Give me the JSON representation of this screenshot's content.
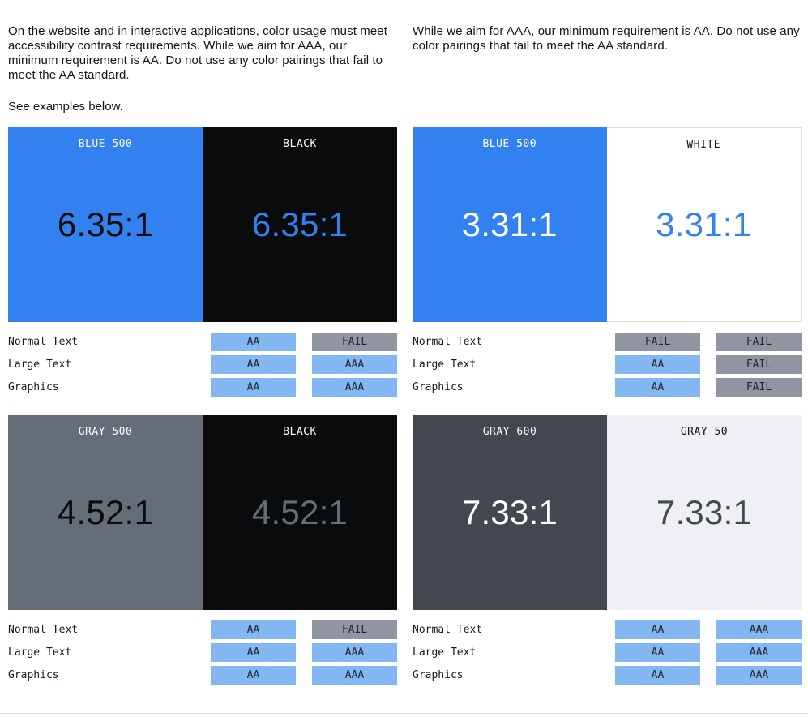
{
  "intro": {
    "left_paragraph": "On the website and in interactive applications, color usage must meet accessibility contrast requirements. While we aim for AAA, our minimum requirement is AA. Do not use any color pairings that fail to meet the AA standard.",
    "left_note": "See examples below.",
    "right_paragraph": "While we aim for AAA, our minimum requirement is AA. Do not use any color pairings that fail to meet the AA standard."
  },
  "palette": {
    "blue_500": "#3381F1",
    "black": "#0A0B0D",
    "white": "#FFFFFF",
    "gray_500": "#656D79",
    "gray_600": "#424750",
    "gray_50": "#EEF0F4",
    "badge_pass_bg": "#82B7F2",
    "badge_fail_bg": "#8F96A2",
    "divider": "#DDDEDF"
  },
  "cards": [
    {
      "ratio": "6.35:1",
      "left": {
        "label": "BLUE 500"
      },
      "right": {
        "label": "BLACK"
      },
      "rows": [
        {
          "label": "Normal Text",
          "badges": [
            {
              "text": "AA",
              "status": "pass"
            },
            {
              "text": "FAIL",
              "status": "fail"
            }
          ]
        },
        {
          "label": "Large Text",
          "badges": [
            {
              "text": "AA",
              "status": "pass"
            },
            {
              "text": "AAA",
              "status": "pass"
            }
          ]
        },
        {
          "label": "Graphics",
          "badges": [
            {
              "text": "AA",
              "status": "pass"
            },
            {
              "text": "AAA",
              "status": "pass"
            }
          ]
        }
      ]
    },
    {
      "ratio": "3.31:1",
      "left": {
        "label": "BLUE 500"
      },
      "right": {
        "label": "WHITE"
      },
      "rows": [
        {
          "label": "Normal Text",
          "badges": [
            {
              "text": "FAIL",
              "status": "fail"
            },
            {
              "text": "FAIL",
              "status": "fail"
            }
          ]
        },
        {
          "label": "Large Text",
          "badges": [
            {
              "text": "AA",
              "status": "pass"
            },
            {
              "text": "FAIL",
              "status": "fail"
            }
          ]
        },
        {
          "label": "Graphics",
          "badges": [
            {
              "text": "AA",
              "status": "pass"
            },
            {
              "text": "FAIL",
              "status": "fail"
            }
          ]
        }
      ]
    },
    {
      "ratio": "4.52:1",
      "left": {
        "label": "GRAY 500"
      },
      "right": {
        "label": "BLACK"
      },
      "rows": [
        {
          "label": "Normal Text",
          "badges": [
            {
              "text": "AA",
              "status": "pass"
            },
            {
              "text": "FAIL",
              "status": "fail"
            }
          ]
        },
        {
          "label": "Large Text",
          "badges": [
            {
              "text": "AA",
              "status": "pass"
            },
            {
              "text": "AAA",
              "status": "pass"
            }
          ]
        },
        {
          "label": "Graphics",
          "badges": [
            {
              "text": "AA",
              "status": "pass"
            },
            {
              "text": "AAA",
              "status": "pass"
            }
          ]
        }
      ]
    },
    {
      "ratio": "7.33:1",
      "left": {
        "label": "GRAY 600"
      },
      "right": {
        "label": "GRAY 50"
      },
      "rows": [
        {
          "label": "Normal Text",
          "badges": [
            {
              "text": "AA",
              "status": "pass"
            },
            {
              "text": "AAA",
              "status": "pass"
            }
          ]
        },
        {
          "label": "Large Text",
          "badges": [
            {
              "text": "AA",
              "status": "pass"
            },
            {
              "text": "AAA",
              "status": "pass"
            }
          ]
        },
        {
          "label": "Graphics",
          "badges": [
            {
              "text": "AA",
              "status": "pass"
            },
            {
              "text": "AAA",
              "status": "pass"
            }
          ]
        }
      ]
    }
  ]
}
